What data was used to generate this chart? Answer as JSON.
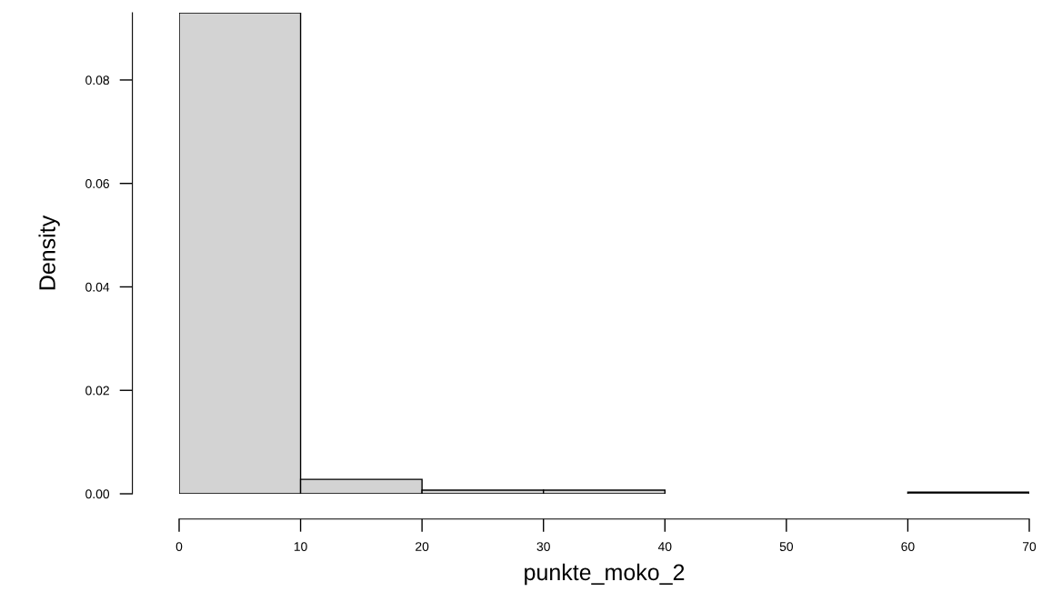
{
  "chart_data": {
    "type": "histogram",
    "xlabel": "punkte_moko_2",
    "ylabel": "Density",
    "bins": [
      0,
      10,
      20,
      30,
      40,
      50,
      60,
      70
    ],
    "values": [
      0.093,
      0.0028,
      0.0007,
      0.0007,
      0,
      0,
      0.0003
    ],
    "color": "#d3d3d3",
    "xlim": [
      0,
      70
    ],
    "ylim": [
      0,
      0.093
    ],
    "xticks": [
      0,
      10,
      20,
      30,
      40,
      50,
      60,
      70
    ],
    "yticks": [
      {
        "value": 0,
        "label": "0.00"
      },
      {
        "value": 0.02,
        "label": "0.02"
      },
      {
        "value": 0.04,
        "label": "0.04"
      },
      {
        "value": 0.06,
        "label": "0.06"
      },
      {
        "value": 0.08,
        "label": "0.08"
      }
    ],
    "grid": false
  }
}
